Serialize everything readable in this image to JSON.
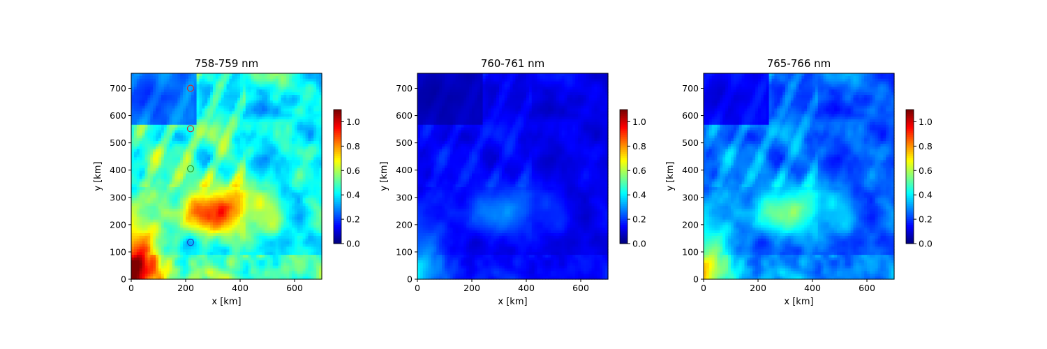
{
  "figure": {
    "colormap": "jet",
    "background": "#ffffff"
  },
  "chart_data": [
    {
      "type": "heatmap",
      "title": "758-759 nm",
      "xlabel": "x [km]",
      "ylabel": "y [km]",
      "xlim": [
        0,
        700
      ],
      "ylim": [
        0,
        755
      ],
      "xticks": [
        "0",
        "200",
        "400",
        "600"
      ],
      "yticks": [
        "0",
        "100",
        "200",
        "300",
        "400",
        "500",
        "600",
        "700"
      ],
      "colorbar": {
        "range": [
          0,
          1.1
        ],
        "ticks": [
          "0.0",
          "0.2",
          "0.4",
          "0.6",
          "0.8",
          "1.0"
        ]
      },
      "field_level": "high",
      "markers": [
        {
          "x": 218,
          "y": 700,
          "color": "#d62728"
        },
        {
          "x": 218,
          "y": 552,
          "color": "#d62728"
        },
        {
          "x": 218,
          "y": 405,
          "color": "#2ca02c"
        },
        {
          "x": 218,
          "y": 135,
          "color": "#1f3fbf"
        }
      ]
    },
    {
      "type": "heatmap",
      "title": "760-761 nm",
      "xlabel": "x [km]",
      "ylabel": "y [km]",
      "xlim": [
        0,
        700
      ],
      "ylim": [
        0,
        755
      ],
      "xticks": [
        "0",
        "200",
        "400",
        "600"
      ],
      "yticks": [
        "0",
        "100",
        "200",
        "300",
        "400",
        "500",
        "600",
        "700"
      ],
      "colorbar": {
        "range": [
          0,
          1.1
        ],
        "ticks": [
          "0.0",
          "0.2",
          "0.4",
          "0.6",
          "0.8",
          "1.0"
        ]
      },
      "field_level": "low",
      "markers": []
    },
    {
      "type": "heatmap",
      "title": "765-766 nm",
      "xlabel": "x [km]",
      "ylabel": "y [km]",
      "xlim": [
        0,
        700
      ],
      "ylim": [
        0,
        755
      ],
      "xticks": [
        "0",
        "200",
        "400",
        "600"
      ],
      "yticks": [
        "0",
        "100",
        "200",
        "300",
        "400",
        "500",
        "600",
        "700"
      ],
      "colorbar": {
        "range": [
          0,
          1.1
        ],
        "ticks": [
          "0.0",
          "0.2",
          "0.4",
          "0.6",
          "0.8",
          "1.0"
        ]
      },
      "field_level": "medium",
      "markers": []
    }
  ]
}
